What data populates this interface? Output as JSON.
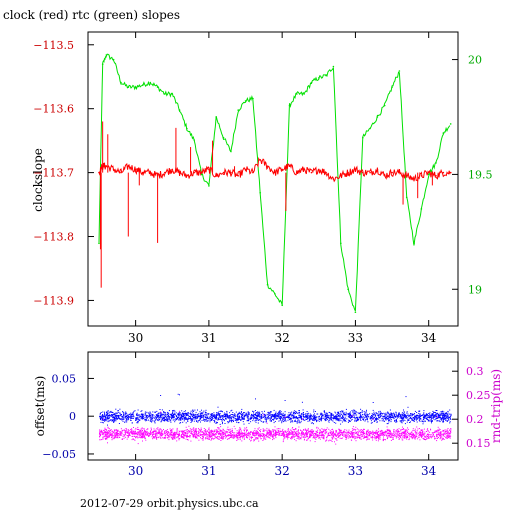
{
  "title": "clock (red) rtc (green) slopes",
  "footer": "2012-07-29  orbit.physics.ubc.ca",
  "colors": {
    "clock": "#ff0000",
    "rtc": "#00e000",
    "offset": "#0000ff",
    "rndtrip": "#ff00ff",
    "axis_text_clock": "#cc0000",
    "axis_text_rtc": "#00aa00",
    "axis_text_offset": "#0000aa",
    "axis_text_rndtrip": "#cc00cc"
  },
  "chart_data": [
    {
      "type": "line",
      "title": "clock (red) rtc (green) slopes",
      "ylabel": "clockslope",
      "xlim": [
        29.35,
        34.4
      ],
      "ylim_left": [
        -113.94,
        -113.48
      ],
      "ylim_right": [
        18.84,
        20.12
      ],
      "x_ticks": [
        "30",
        "31",
        "32",
        "33",
        "34"
      ],
      "y_ticks_left": [
        "-113.5",
        "-113.6",
        "-113.7",
        "-113.8",
        "-113.9"
      ],
      "y_ticks_right": [
        "20",
        "19.5",
        "19"
      ],
      "series": [
        {
          "name": "clock (red)",
          "axis": "left",
          "x": [
            29.5,
            29.55,
            29.6,
            29.7,
            29.8,
            29.9,
            30.0,
            30.1,
            30.2,
            30.3,
            30.4,
            30.5,
            30.6,
            30.7,
            30.8,
            30.9,
            31.0,
            31.1,
            31.2,
            31.3,
            31.4,
            31.5,
            31.6,
            31.7,
            31.8,
            31.9,
            32.0,
            32.1,
            32.2,
            32.3,
            32.4,
            32.5,
            32.6,
            32.7,
            32.8,
            32.9,
            33.0,
            33.1,
            33.2,
            33.3,
            33.4,
            33.5,
            33.6,
            33.7,
            33.8,
            33.9,
            34.0,
            34.1,
            34.2,
            34.3
          ],
          "y": [
            -113.7,
            -113.69,
            -113.69,
            -113.695,
            -113.7,
            -113.69,
            -113.695,
            -113.7,
            -113.7,
            -113.705,
            -113.7,
            -113.695,
            -113.7,
            -113.705,
            -113.7,
            -113.7,
            -113.695,
            -113.705,
            -113.7,
            -113.7,
            -113.705,
            -113.695,
            -113.7,
            -113.68,
            -113.69,
            -113.7,
            -113.695,
            -113.69,
            -113.7,
            -113.695,
            -113.7,
            -113.695,
            -113.7,
            -113.71,
            -113.705,
            -113.7,
            -113.695,
            -113.7,
            -113.7,
            -113.695,
            -113.705,
            -113.7,
            -113.7,
            -113.705,
            -113.71,
            -113.705,
            -113.7,
            -113.705,
            -113.7,
            -113.7
          ]
        },
        {
          "name": "rtc (green)",
          "axis": "right",
          "x": [
            29.5,
            29.55,
            29.6,
            29.7,
            29.8,
            29.9,
            30.0,
            30.1,
            30.2,
            30.3,
            30.4,
            30.5,
            30.6,
            30.7,
            30.8,
            30.9,
            31.0,
            31.1,
            31.2,
            31.3,
            31.4,
            31.5,
            31.6,
            31.7,
            31.8,
            31.9,
            32.0,
            32.1,
            32.2,
            32.3,
            32.4,
            32.5,
            32.6,
            32.7,
            32.8,
            32.9,
            33.0,
            33.1,
            33.2,
            33.3,
            33.4,
            33.5,
            33.6,
            33.7,
            33.8,
            33.9,
            34.0,
            34.1,
            34.2,
            34.3
          ],
          "y": [
            19.2,
            19.98,
            20.02,
            20.0,
            19.9,
            19.88,
            19.88,
            19.89,
            19.9,
            19.88,
            19.85,
            19.85,
            19.78,
            19.7,
            19.65,
            19.5,
            19.45,
            19.75,
            19.66,
            19.6,
            19.78,
            19.82,
            19.83,
            19.42,
            19.02,
            18.98,
            18.93,
            19.8,
            19.85,
            19.85,
            19.9,
            19.92,
            19.93,
            19.97,
            19.2,
            19.0,
            18.9,
            19.66,
            19.7,
            19.75,
            19.8,
            19.88,
            19.95,
            19.4,
            19.2,
            19.35,
            19.5,
            19.55,
            19.68,
            19.72
          ]
        }
      ]
    },
    {
      "type": "scatter",
      "xlim": [
        29.35,
        34.4
      ],
      "ylim_left": [
        -0.058,
        0.085
      ],
      "ylim_right": [
        0.115,
        0.34
      ],
      "xlabel": "",
      "ylabel_left": "offset(ms)",
      "ylabel_right": "rnd-trip(ms)",
      "x_ticks": [
        "30",
        "31",
        "32",
        "33",
        "34"
      ],
      "y_ticks_left": [
        "0.05",
        "0",
        "-0.05"
      ],
      "y_ticks_right": [
        "0.3",
        "0.25",
        "0.2",
        "0.15"
      ],
      "series": [
        {
          "name": "offset(ms)",
          "axis": "left",
          "x_range": [
            29.5,
            34.3
          ],
          "center": 0.0,
          "spread": 0.011
        },
        {
          "name": "rnd-trip(ms)",
          "axis": "right",
          "x_range": [
            29.5,
            34.3
          ],
          "center": 0.17,
          "spread": 0.018
        }
      ]
    }
  ]
}
